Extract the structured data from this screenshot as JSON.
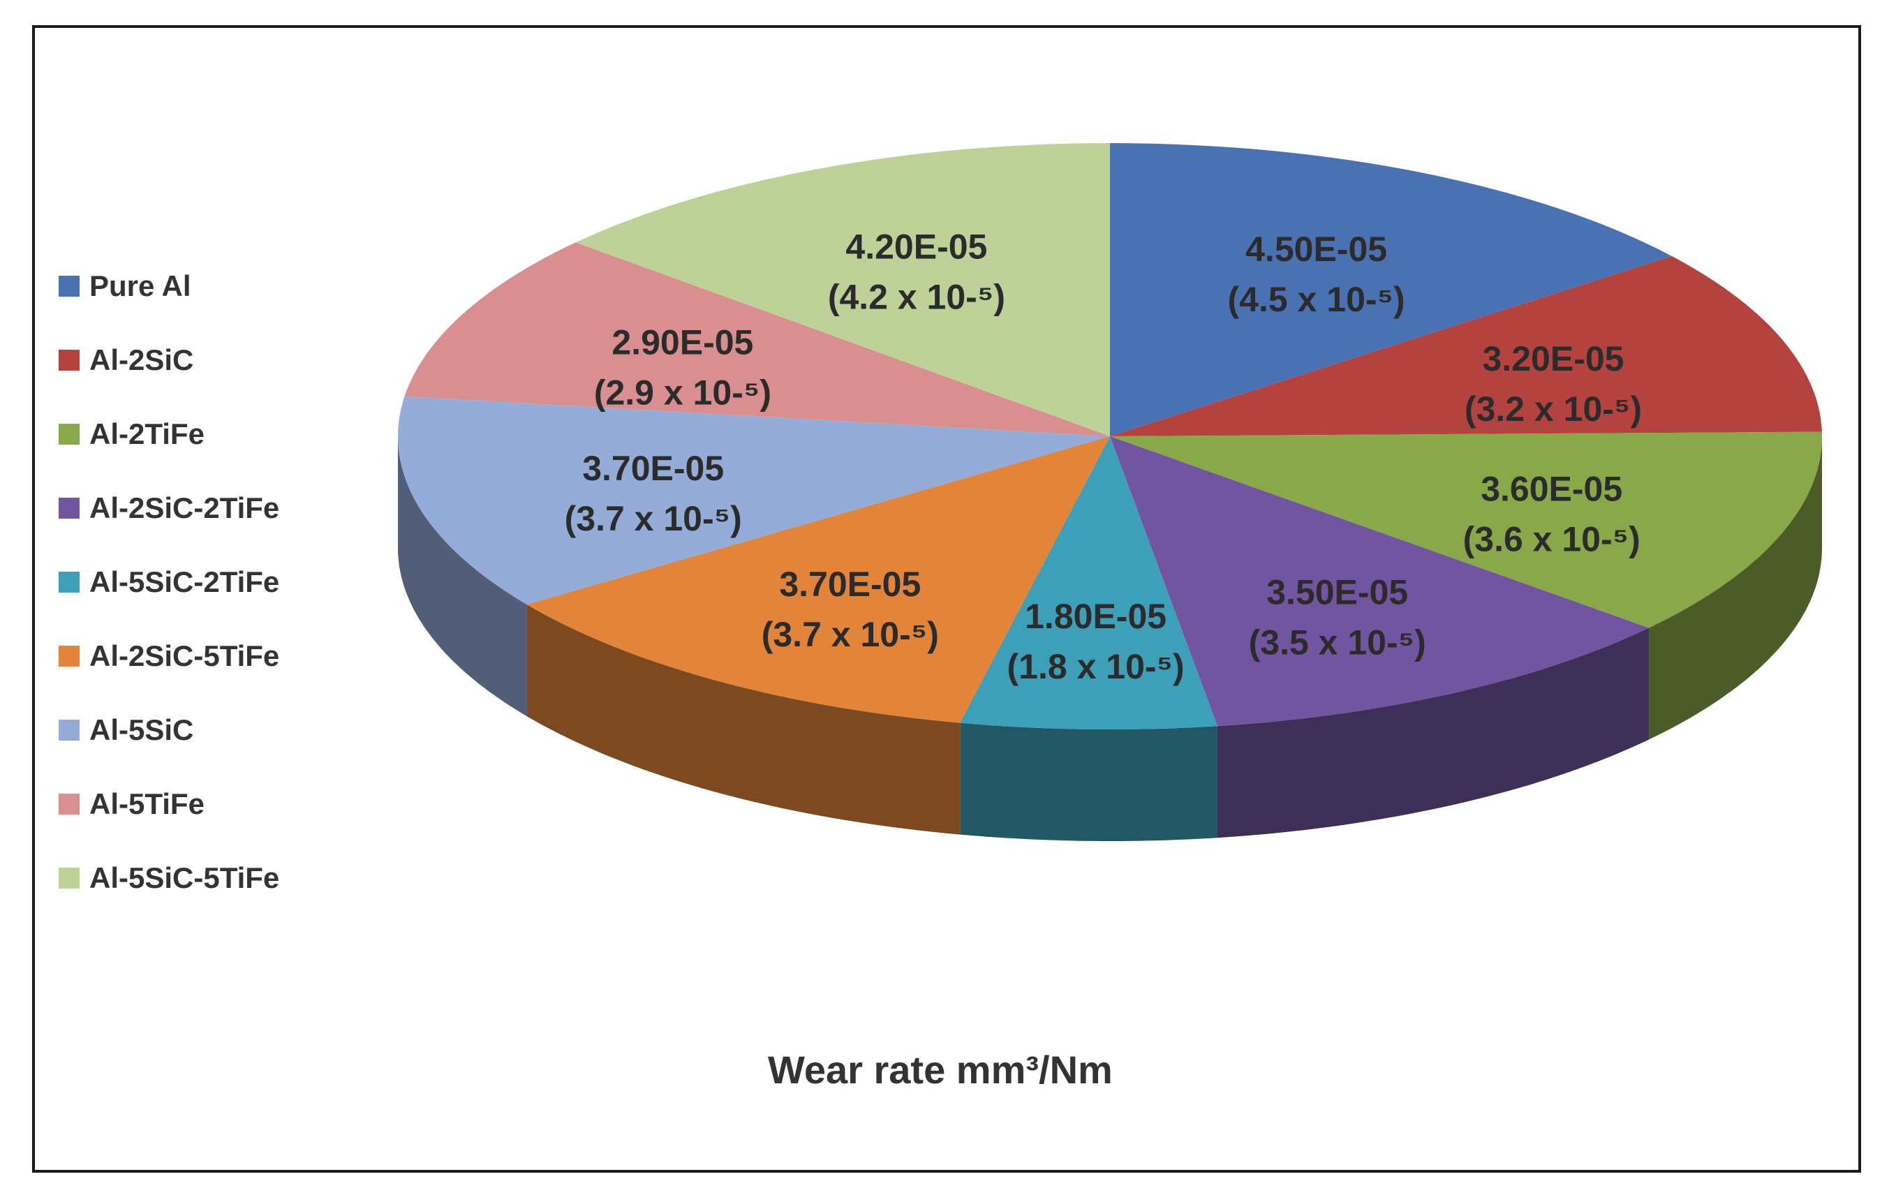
{
  "chart_data": {
    "type": "pie",
    "title": "Wear rate mm³/Nm",
    "legend_position": "left",
    "slices": [
      {
        "name": "Pure Al",
        "value": 4.5e-05,
        "label": "4.50E-05",
        "sublabel": "(4.5 x 10-⁵)",
        "color": "#4a72b3"
      },
      {
        "name": "Al-2SiC",
        "value": 3.2e-05,
        "label": "3.20E-05",
        "sublabel": "(3.2 x 10-⁵)",
        "color": "#b4433f"
      },
      {
        "name": "Al-2TiFe",
        "value": 3.6e-05,
        "label": "3.60E-05",
        "sublabel": "(3.6 x 10-⁵)",
        "color": "#89a84a"
      },
      {
        "name": "Al-2SiC-2TiFe",
        "value": 3.5e-05,
        "label": "3.50E-05",
        "sublabel": "(3.5 x 10-⁵)",
        "color": "#7155a0"
      },
      {
        "name": "Al-5SiC-2TiFe",
        "value": 1.8e-05,
        "label": "1.80E-05",
        "sublabel": "(1.8 x 10-⁵)",
        "color": "#3d9fb8"
      },
      {
        "name": "Al-2SiC-5TiFe",
        "value": 3.7e-05,
        "label": "3.70E-05",
        "sublabel": "(3.7 x 10-⁵)",
        "color": "#e2843a"
      },
      {
        "name": "Al-5SiC",
        "value": 3.7e-05,
        "label": "3.70E-05",
        "sublabel": "(3.7 x 10-⁵)",
        "color": "#95abd8"
      },
      {
        "name": "Al-5TiFe",
        "value": 2.9e-05,
        "label": "2.90E-05",
        "sublabel": "(2.9 x 10-⁵)",
        "color": "#d98f8f"
      },
      {
        "name": "Al-5SiC-5TiFe",
        "value": 4.2e-05,
        "label": "4.20E-05",
        "sublabel": "(4.2 x 10-⁵)",
        "color": "#bdd198"
      }
    ]
  }
}
